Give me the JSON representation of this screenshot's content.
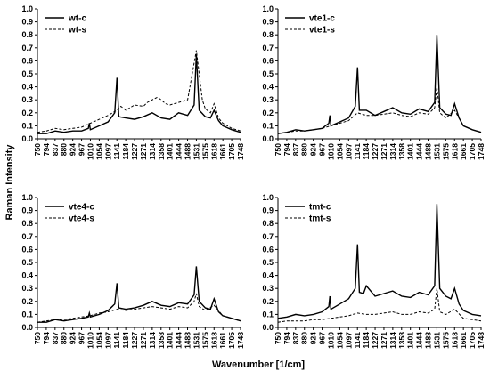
{
  "figure": {
    "ylabel": "Raman Intensity",
    "xlabel": "Wavenumber [1/cm]"
  },
  "chart_data": [
    {
      "type": "line",
      "panel": "top-left",
      "legend_position": "top-left",
      "ylim": [
        0,
        1.0
      ],
      "y_ticks": [
        "0.0",
        "0.1",
        "0.2",
        "0.3",
        "0.4",
        "0.5",
        "0.6",
        "0.7",
        "0.8",
        "0.9",
        "1.0"
      ],
      "x_ticks": [
        "750",
        "794",
        "837",
        "880",
        "924",
        "967",
        "1010",
        "1054",
        "1097",
        "1141",
        "1184",
        "1227",
        "1271",
        "1314",
        "1358",
        "1401",
        "1444",
        "1488",
        "1531",
        "1575",
        "1618",
        "1661",
        "1705",
        "1748"
      ],
      "xlim": [
        750,
        1748
      ],
      "series": [
        {
          "name": "wt-c",
          "style": "solid",
          "x": [
            750,
            794,
            837,
            880,
            924,
            967,
            1000,
            1005,
            1010,
            1054,
            1097,
            1130,
            1141,
            1150,
            1184,
            1227,
            1271,
            1314,
            1358,
            1401,
            1444,
            1488,
            1520,
            1531,
            1545,
            1575,
            1600,
            1618,
            1640,
            1661,
            1705,
            1748
          ],
          "y": [
            0.04,
            0.04,
            0.06,
            0.05,
            0.06,
            0.06,
            0.08,
            0.12,
            0.07,
            0.1,
            0.13,
            0.2,
            0.47,
            0.17,
            0.16,
            0.15,
            0.17,
            0.2,
            0.16,
            0.15,
            0.2,
            0.18,
            0.26,
            0.65,
            0.22,
            0.17,
            0.16,
            0.22,
            0.14,
            0.1,
            0.07,
            0.05
          ]
        },
        {
          "name": "wt-s",
          "style": "dashed",
          "x": [
            750,
            794,
            837,
            880,
            924,
            967,
            1010,
            1054,
            1097,
            1141,
            1160,
            1184,
            1227,
            1271,
            1290,
            1314,
            1340,
            1358,
            1380,
            1401,
            1444,
            1488,
            1531,
            1560,
            1575,
            1600,
            1618,
            1640,
            1661,
            1705,
            1748
          ],
          "y": [
            0.05,
            0.06,
            0.08,
            0.07,
            0.08,
            0.09,
            0.12,
            0.15,
            0.18,
            0.22,
            0.25,
            0.22,
            0.26,
            0.25,
            0.28,
            0.3,
            0.32,
            0.3,
            0.27,
            0.26,
            0.28,
            0.3,
            0.68,
            0.3,
            0.23,
            0.2,
            0.27,
            0.16,
            0.12,
            0.08,
            0.06
          ]
        }
      ]
    },
    {
      "type": "line",
      "panel": "top-right",
      "legend_position": "top-left",
      "ylim": [
        0,
        1.0
      ],
      "y_ticks": [
        "0.0",
        "0.1",
        "0.2",
        "0.3",
        "0.4",
        "0.5",
        "0.6",
        "0.7",
        "0.8",
        "0.9",
        "1.0"
      ],
      "x_ticks": [
        "750",
        "794",
        "837",
        "880",
        "924",
        "967",
        "1010",
        "1054",
        "1097",
        "1141",
        "1184",
        "1227",
        "1271",
        "1314",
        "1358",
        "1401",
        "1444",
        "1488",
        "1531",
        "1575",
        "1618",
        "1661",
        "1705",
        "1748"
      ],
      "xlim": [
        750,
        1748
      ],
      "series": [
        {
          "name": "vte1-c",
          "style": "solid",
          "x": [
            750,
            794,
            837,
            880,
            924,
            967,
            1000,
            1005,
            1010,
            1054,
            1097,
            1130,
            1141,
            1150,
            1184,
            1227,
            1271,
            1314,
            1358,
            1401,
            1444,
            1488,
            1520,
            1531,
            1545,
            1575,
            1600,
            1618,
            1640,
            1661,
            1705,
            1748
          ],
          "y": [
            0.04,
            0.05,
            0.07,
            0.06,
            0.07,
            0.08,
            0.12,
            0.18,
            0.1,
            0.13,
            0.16,
            0.25,
            0.55,
            0.22,
            0.22,
            0.18,
            0.21,
            0.24,
            0.2,
            0.19,
            0.23,
            0.21,
            0.28,
            0.8,
            0.24,
            0.19,
            0.18,
            0.27,
            0.16,
            0.1,
            0.07,
            0.05
          ]
        },
        {
          "name": "vte1-s",
          "style": "dashed",
          "x": [
            750,
            794,
            837,
            880,
            924,
            967,
            1010,
            1054,
            1097,
            1141,
            1184,
            1227,
            1271,
            1314,
            1358,
            1401,
            1444,
            1488,
            1520,
            1531,
            1545,
            1575,
            1618,
            1661,
            1705,
            1748
          ],
          "y": [
            0.04,
            0.05,
            0.06,
            0.06,
            0.07,
            0.08,
            0.1,
            0.12,
            0.14,
            0.2,
            0.18,
            0.18,
            0.19,
            0.2,
            0.18,
            0.17,
            0.2,
            0.19,
            0.24,
            0.4,
            0.2,
            0.16,
            0.22,
            0.1,
            0.07,
            0.05
          ]
        }
      ]
    },
    {
      "type": "line",
      "panel": "bottom-left",
      "legend_position": "top-left",
      "ylim": [
        0,
        1.0
      ],
      "y_ticks": [
        "0.0",
        "0.1",
        "0.2",
        "0.3",
        "0.4",
        "0.5",
        "0.6",
        "0.7",
        "0.8",
        "0.9",
        "1.0"
      ],
      "x_ticks": [
        "750",
        "794",
        "837",
        "880",
        "924",
        "967",
        "1010",
        "1054",
        "1097",
        "1141",
        "1184",
        "1227",
        "1271",
        "1314",
        "1358",
        "1401",
        "1444",
        "1488",
        "1531",
        "1575",
        "1618",
        "1661",
        "1705",
        "1748"
      ],
      "xlim": [
        750,
        1748
      ],
      "series": [
        {
          "name": "vte4-c",
          "style": "solid",
          "x": [
            750,
            794,
            837,
            880,
            924,
            967,
            1000,
            1005,
            1010,
            1054,
            1097,
            1130,
            1141,
            1150,
            1184,
            1227,
            1271,
            1314,
            1358,
            1401,
            1444,
            1488,
            1520,
            1531,
            1545,
            1575,
            1600,
            1618,
            1640,
            1661,
            1705,
            1748
          ],
          "y": [
            0.04,
            0.04,
            0.06,
            0.05,
            0.06,
            0.07,
            0.08,
            0.11,
            0.08,
            0.1,
            0.13,
            0.18,
            0.34,
            0.15,
            0.14,
            0.15,
            0.17,
            0.2,
            0.17,
            0.16,
            0.19,
            0.18,
            0.25,
            0.47,
            0.2,
            0.15,
            0.14,
            0.22,
            0.12,
            0.09,
            0.07,
            0.05
          ]
        },
        {
          "name": "vte4-s",
          "style": "dashed",
          "x": [
            750,
            794,
            837,
            880,
            924,
            967,
            1010,
            1054,
            1097,
            1141,
            1184,
            1227,
            1271,
            1314,
            1358,
            1401,
            1444,
            1488,
            1520,
            1531,
            1545,
            1575,
            1618,
            1661,
            1705,
            1748
          ],
          "y": [
            0.04,
            0.05,
            0.06,
            0.06,
            0.07,
            0.08,
            0.09,
            0.11,
            0.12,
            0.14,
            0.13,
            0.14,
            0.15,
            0.16,
            0.15,
            0.14,
            0.16,
            0.15,
            0.2,
            0.26,
            0.16,
            0.13,
            0.17,
            0.09,
            0.07,
            0.05
          ]
        }
      ]
    },
    {
      "type": "line",
      "panel": "bottom-right",
      "legend_position": "top-left",
      "ylim": [
        0,
        1.0
      ],
      "y_ticks": [
        "0.0",
        "0.1",
        "0.2",
        "0.3",
        "0.4",
        "0.5",
        "0.6",
        "0.7",
        "0.8",
        "0.9",
        "1.0"
      ],
      "x_ticks": [
        "750",
        "794",
        "837",
        "880",
        "924",
        "967",
        "1010",
        "1054",
        "1097",
        "1141",
        "1184",
        "1227",
        "1271",
        "1314",
        "1358",
        "1401",
        "1444",
        "1488",
        "1531",
        "1575",
        "1618",
        "1661",
        "1705",
        "1748"
      ],
      "xlim": [
        750,
        1748
      ],
      "series": [
        {
          "name": "tmt-c",
          "style": "solid",
          "x": [
            750,
            794,
            837,
            880,
            924,
            967,
            1000,
            1005,
            1010,
            1054,
            1097,
            1130,
            1141,
            1150,
            1170,
            1184,
            1227,
            1271,
            1314,
            1358,
            1401,
            1444,
            1488,
            1520,
            1531,
            1545,
            1575,
            1600,
            1618,
            1640,
            1661,
            1705,
            1748
          ],
          "y": [
            0.07,
            0.08,
            0.1,
            0.09,
            0.1,
            0.12,
            0.16,
            0.24,
            0.14,
            0.18,
            0.22,
            0.3,
            0.64,
            0.27,
            0.26,
            0.32,
            0.24,
            0.26,
            0.28,
            0.24,
            0.23,
            0.27,
            0.25,
            0.32,
            0.95,
            0.3,
            0.24,
            0.22,
            0.3,
            0.18,
            0.13,
            0.1,
            0.09
          ]
        },
        {
          "name": "tmt-s",
          "style": "dashed",
          "x": [
            750,
            794,
            837,
            880,
            924,
            967,
            1010,
            1054,
            1097,
            1141,
            1184,
            1227,
            1271,
            1314,
            1358,
            1401,
            1444,
            1488,
            1520,
            1531,
            1545,
            1575,
            1618,
            1661,
            1705,
            1748
          ],
          "y": [
            0.04,
            0.05,
            0.05,
            0.05,
            0.06,
            0.06,
            0.07,
            0.08,
            0.09,
            0.11,
            0.1,
            0.1,
            0.11,
            0.12,
            0.1,
            0.1,
            0.12,
            0.11,
            0.14,
            0.3,
            0.12,
            0.1,
            0.14,
            0.07,
            0.06,
            0.05
          ]
        }
      ]
    }
  ]
}
